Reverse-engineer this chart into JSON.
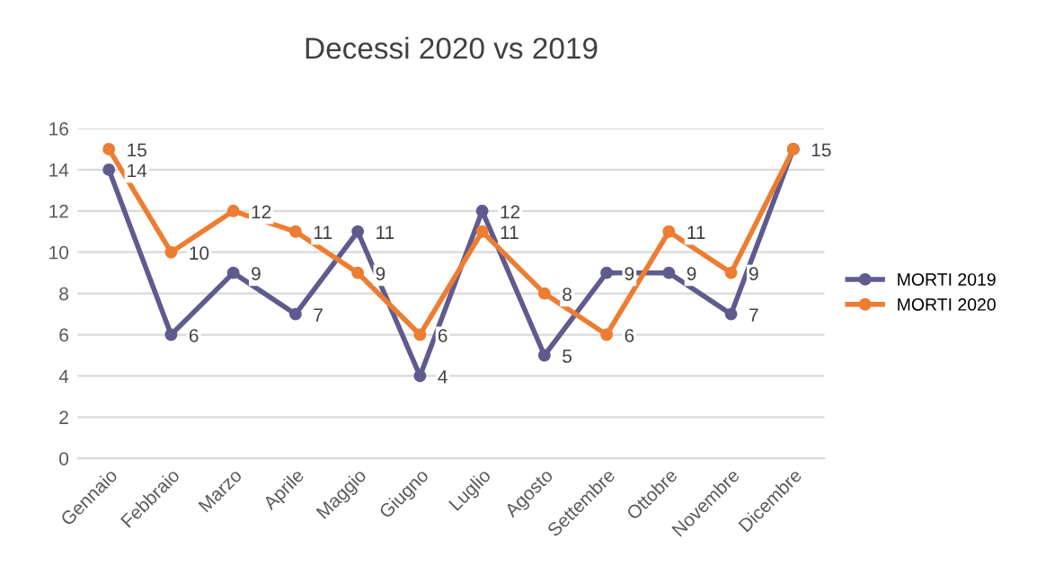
{
  "chart_data": {
    "type": "line",
    "title": "Decessi 2020 vs 2019",
    "categories": [
      "Gennaio",
      "Febbraio",
      "Marzo",
      "Aprile",
      "Maggio",
      "Giugno",
      "Luglio",
      "Agosto",
      "Settembre",
      "Ottobre",
      "Novembre",
      "Dicembre"
    ],
    "series": [
      {
        "name": "MORTI 2019",
        "color": "#5f5b8e",
        "values": [
          14,
          6,
          9,
          7,
          11,
          4,
          12,
          5,
          9,
          9,
          7,
          15
        ],
        "value_labels": [
          "14",
          "6",
          "9",
          "7",
          "11",
          "4",
          "12",
          "5",
          "9",
          "9",
          "7",
          "15"
        ]
      },
      {
        "name": "MORTI 2020",
        "color": "#ed7d31",
        "values": [
          15,
          10,
          12,
          11,
          9,
          6,
          11,
          8,
          6,
          11,
          9,
          15
        ],
        "value_labels": [
          "15",
          "10",
          "12",
          "11",
          "9",
          "6",
          "11",
          "8",
          "6",
          "11",
          "9",
          null
        ]
      }
    ],
    "ylim": [
      0,
      16
    ],
    "yticks": [
      0,
      2,
      4,
      6,
      8,
      10,
      12,
      14,
      16
    ],
    "grid": "y",
    "legend": "right",
    "marker": "circle",
    "line_style": "solid"
  }
}
